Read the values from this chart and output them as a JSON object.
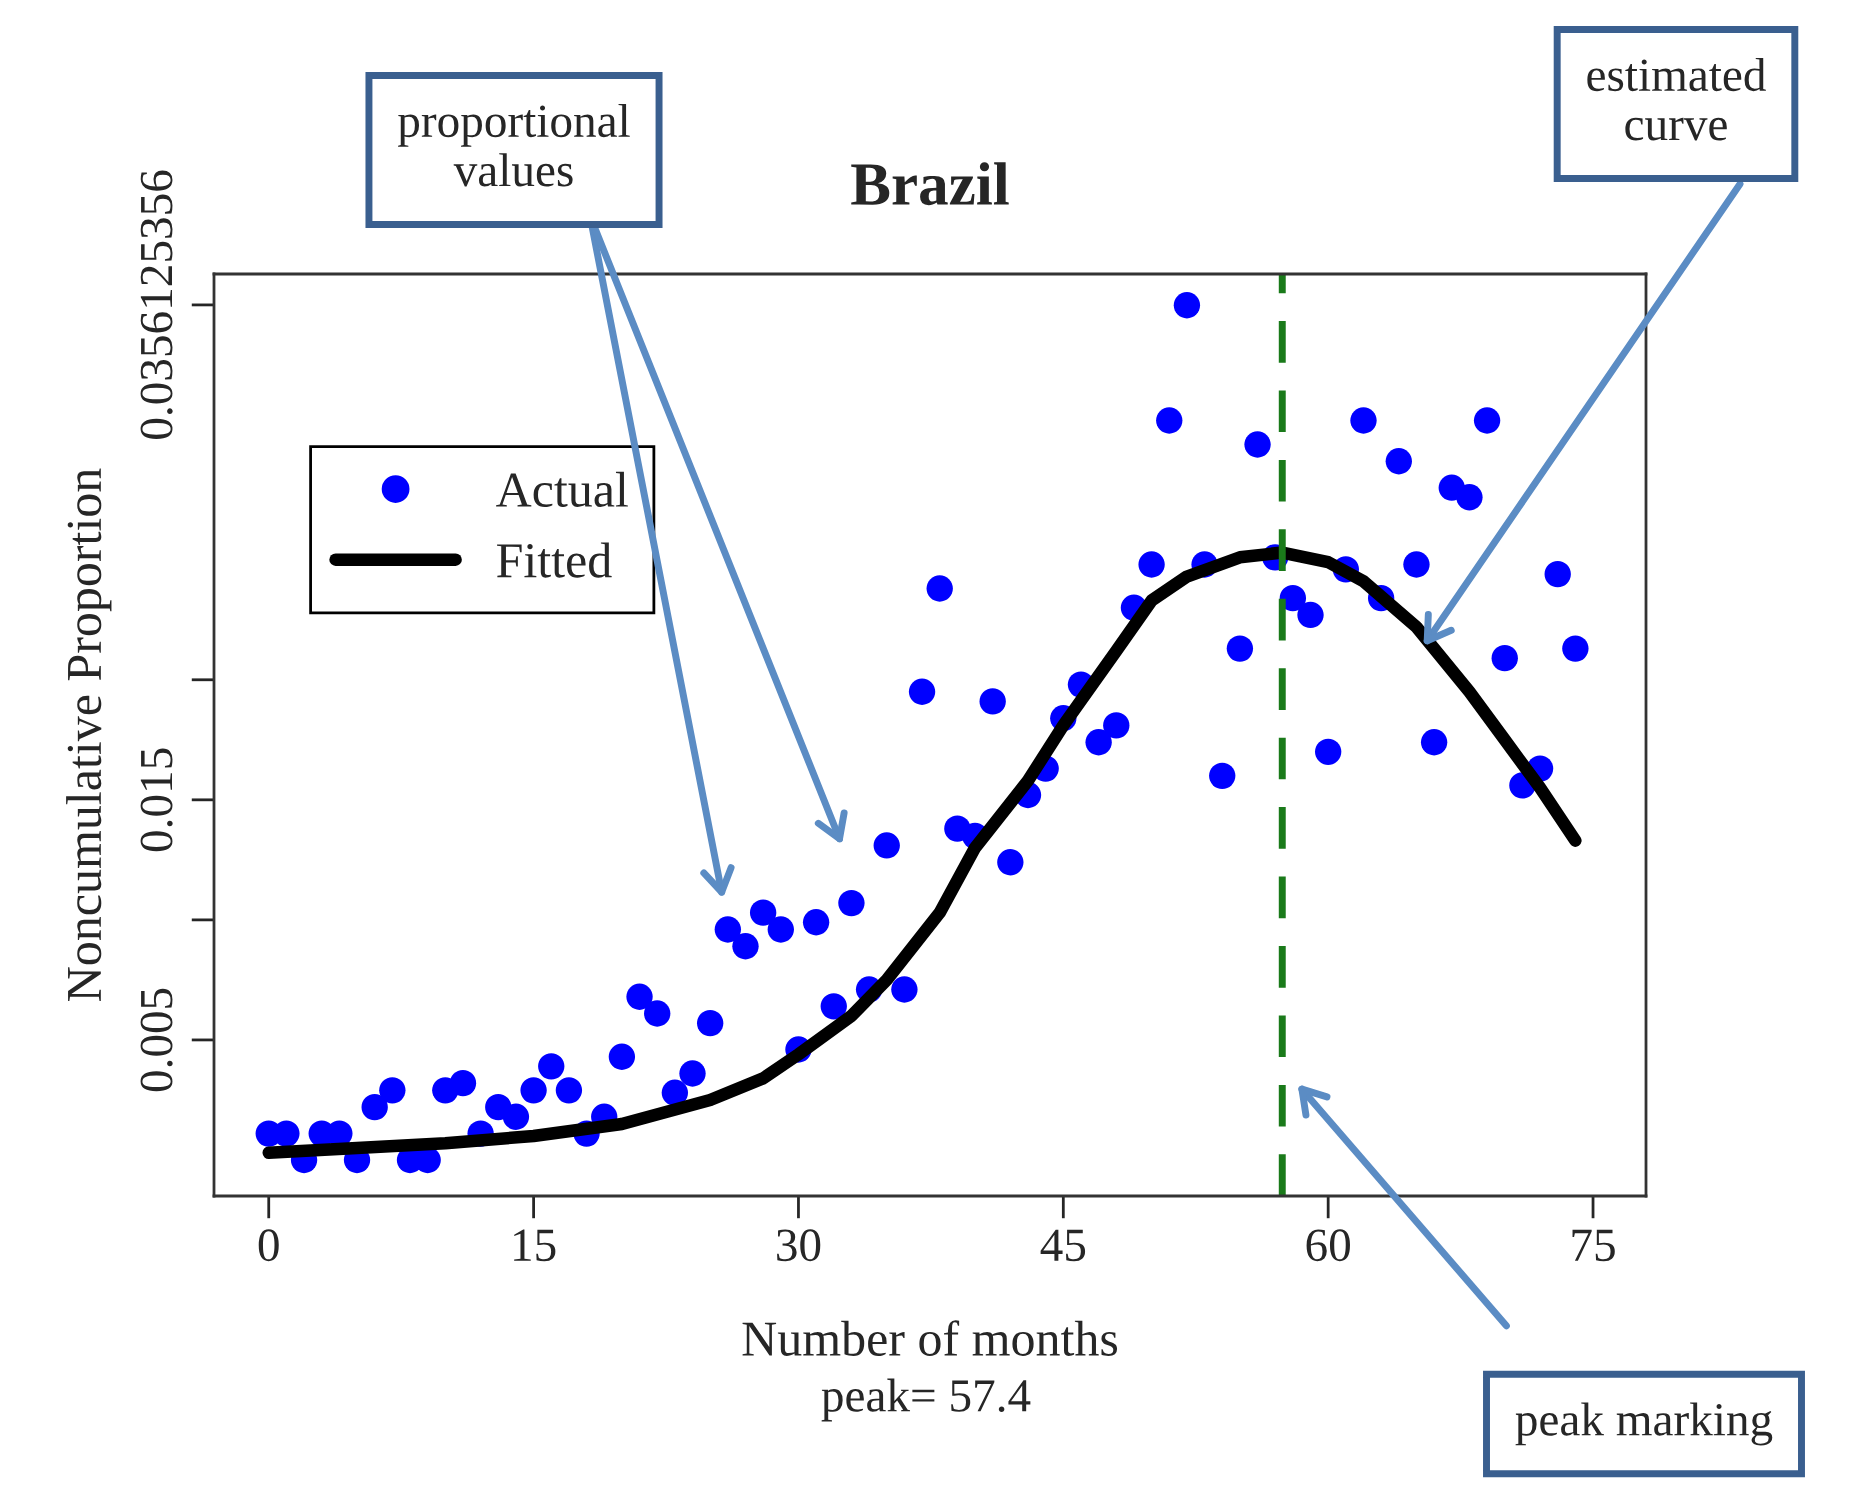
{
  "chart_data": {
    "type": "scatter",
    "title": "Brazil",
    "xlabel": "Number of months",
    "ylabel": "Noncumulative Proportion",
    "xlim": [
      -3.1,
      78
    ],
    "ylim": [
      -0.0015,
      0.0369
    ],
    "xticks": [
      0,
      15,
      30,
      45,
      60,
      75
    ],
    "yticks": [
      0.005,
      {
        "value": 0.01,
        "label": null
      },
      0.015,
      {
        "value": 0.02,
        "label": null
      },
      0.0356125356
    ],
    "grid": false,
    "legend": "top left",
    "marker": "circle",
    "series": [
      {
        "name": "Actual",
        "color": "#0000ff",
        "x": [
          0,
          1,
          2,
          3,
          4,
          5,
          6,
          7,
          8,
          9,
          10,
          11,
          12,
          13,
          14,
          15,
          16,
          17,
          18,
          19,
          20,
          21,
          22,
          23,
          24,
          25,
          26,
          27,
          28,
          29,
          30,
          31,
          32,
          33,
          34,
          35,
          36,
          37,
          38,
          39,
          40,
          41,
          42,
          43,
          44,
          45,
          46,
          47,
          48,
          49,
          50,
          51,
          52,
          53,
          54,
          55,
          56,
          57,
          58,
          59,
          60,
          61,
          62,
          63,
          64,
          65,
          66,
          67,
          68,
          69,
          70,
          71,
          72,
          73,
          74
        ],
        "values": [
          0.0011,
          0.0011,
          0.0,
          0.0011,
          0.0011,
          0.0,
          0.0022,
          0.0029,
          0.0,
          0.0,
          0.0029,
          0.0032,
          0.0011,
          0.0022,
          0.0018,
          0.0029,
          0.0039,
          0.0029,
          0.0011,
          0.0018,
          0.0043,
          0.0068,
          0.0061,
          0.0028,
          0.0036,
          0.0057,
          0.0096,
          0.0089,
          0.0103,
          0.0096,
          0.0046,
          0.0099,
          0.0064,
          0.0107,
          0.0071,
          0.0131,
          0.0071,
          0.0195,
          0.0238,
          0.0138,
          0.0135,
          0.0191,
          0.0124,
          0.0152,
          0.0163,
          0.0184,
          0.0198,
          0.0174,
          0.0181,
          0.023,
          0.0248,
          0.0308,
          0.0356,
          0.0248,
          0.016,
          0.0213,
          0.0298,
          0.0251,
          0.0234,
          0.0227,
          0.017,
          0.0246,
          0.0308,
          0.0234,
          0.0291,
          0.0248,
          0.0174,
          0.028,
          0.0276,
          0.0308,
          0.0209,
          0.0156,
          0.0163,
          0.0244,
          0.0213
        ]
      },
      {
        "name": "Fitted",
        "type": "line",
        "color": "#000000",
        "line_style": "solid",
        "marker": "none",
        "x": [
          0,
          5,
          10,
          15,
          20,
          25,
          28,
          30,
          33,
          35,
          38,
          40,
          43,
          45,
          48,
          50,
          52,
          55,
          57.4,
          60,
          62,
          65,
          68,
          70,
          72,
          74
        ],
        "values": [
          0.0003,
          0.0005,
          0.0007,
          0.001,
          0.0015,
          0.0025,
          0.0034,
          0.0044,
          0.006,
          0.0075,
          0.0103,
          0.013,
          0.0158,
          0.0181,
          0.0212,
          0.0233,
          0.0243,
          0.0251,
          0.0253,
          0.0249,
          0.0241,
          0.0222,
          0.0195,
          0.0175,
          0.0155,
          0.0133
        ]
      }
    ],
    "ref_lines": [
      {
        "axis": "x",
        "value": 57.4,
        "color": "#1a7a1a",
        "line_style": "dashed"
      }
    ],
    "annotations": [
      "proportional values",
      {
        "text": "estimated curve",
        "x": 65.4,
        "y": 0.0214
      },
      "peak marking",
      "peak= 57.4"
    ]
  }
}
